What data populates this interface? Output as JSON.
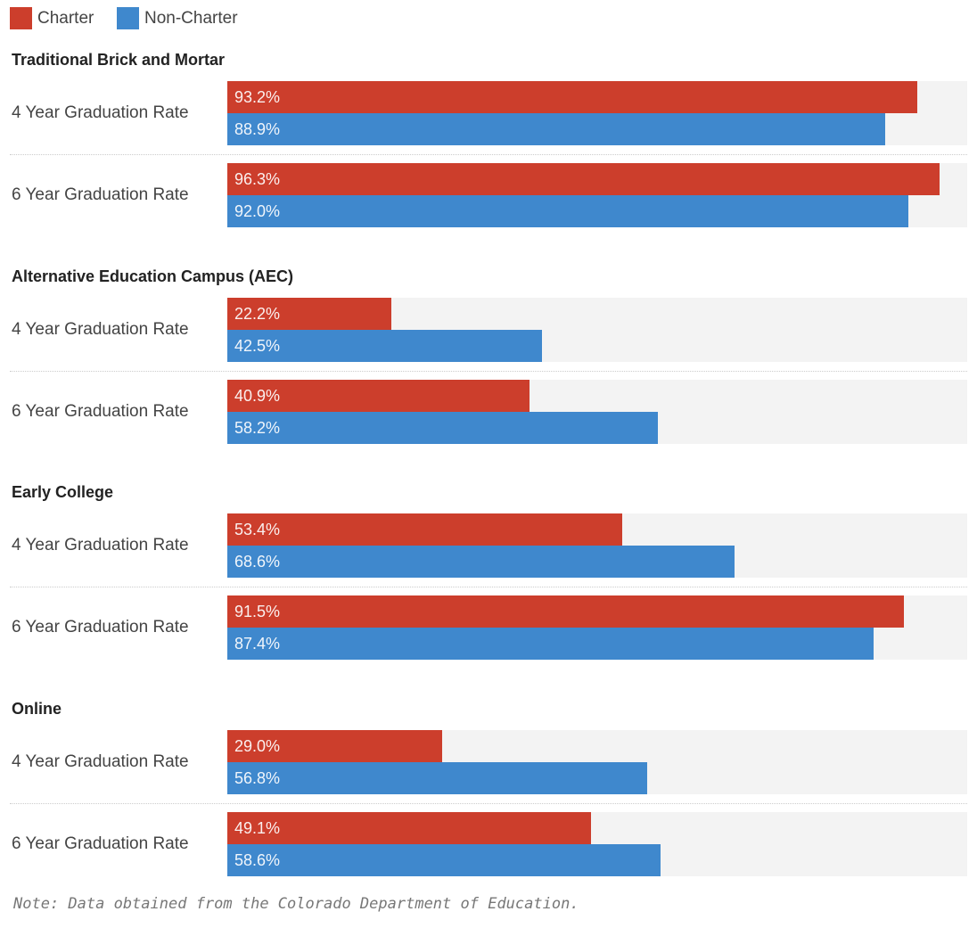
{
  "chart_data": {
    "type": "bar",
    "orientation": "horizontal",
    "legend": {
      "position": "top-left",
      "entries": [
        "Charter",
        "Non-Charter"
      ]
    },
    "colors": {
      "Charter": "#cc3e2c",
      "Non-Charter": "#3f88cd",
      "track": "#f3f3f3"
    },
    "xlim": [
      0,
      100
    ],
    "value_format": "percent",
    "groups": [
      {
        "title": "Traditional Brick and Mortar",
        "rows": [
          {
            "label": "4 Year Graduation Rate",
            "Charter": 93.2,
            "Non-Charter": 88.9,
            "Charter_label": "93.2%",
            "Non-Charter_label": "88.9%"
          },
          {
            "label": "6 Year Graduation Rate",
            "Charter": 96.3,
            "Non-Charter": 92.0,
            "Charter_label": "96.3%",
            "Non-Charter_label": "92.0%"
          }
        ]
      },
      {
        "title": "Alternative Education Campus (AEC)",
        "rows": [
          {
            "label": "4 Year Graduation Rate",
            "Charter": 22.2,
            "Non-Charter": 42.5,
            "Charter_label": "22.2%",
            "Non-Charter_label": "42.5%"
          },
          {
            "label": "6 Year Graduation Rate",
            "Charter": 40.9,
            "Non-Charter": 58.2,
            "Charter_label": "40.9%",
            "Non-Charter_label": "58.2%"
          }
        ]
      },
      {
        "title": "Early College",
        "rows": [
          {
            "label": "4 Year Graduation Rate",
            "Charter": 53.4,
            "Non-Charter": 68.6,
            "Charter_label": "53.4%",
            "Non-Charter_label": "68.6%"
          },
          {
            "label": "6 Year Graduation Rate",
            "Charter": 91.5,
            "Non-Charter": 87.4,
            "Charter_label": "91.5%",
            "Non-Charter_label": "87.4%"
          }
        ]
      },
      {
        "title": "Online",
        "rows": [
          {
            "label": "4 Year Graduation Rate",
            "Charter": 29.0,
            "Non-Charter": 56.8,
            "Charter_label": "29.0%",
            "Non-Charter_label": "56.8%"
          },
          {
            "label": "6 Year Graduation Rate",
            "Charter": 49.1,
            "Non-Charter": 58.6,
            "Charter_label": "49.1%",
            "Non-Charter_label": "58.6%"
          }
        ]
      }
    ],
    "note": "Note: Data obtained from the Colorado Department of Education."
  }
}
